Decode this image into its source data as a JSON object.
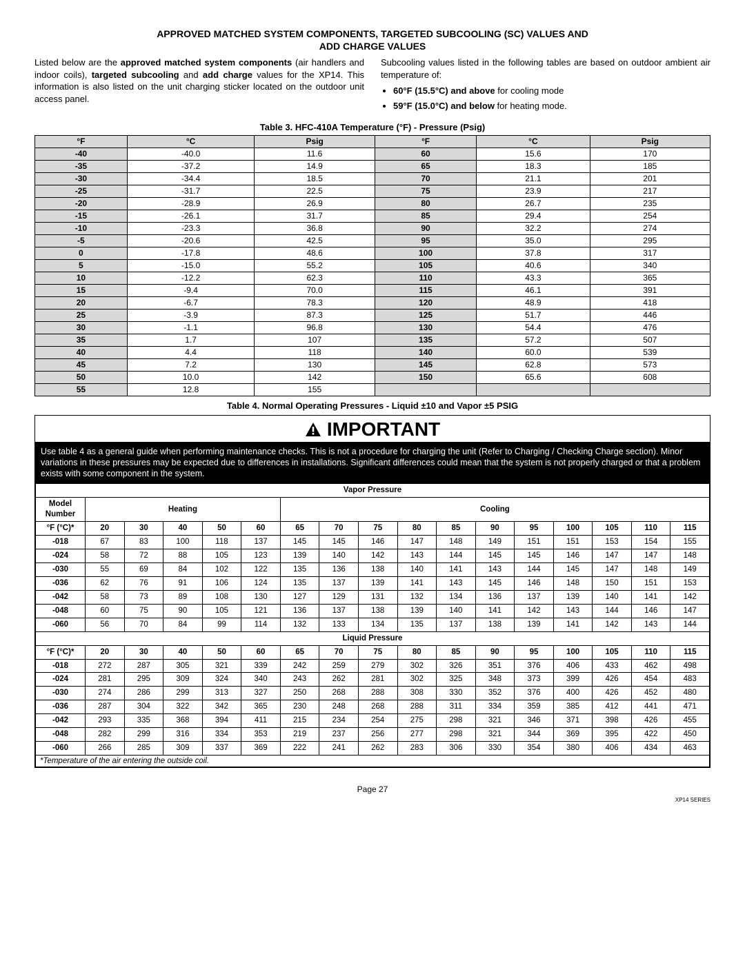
{
  "title_line1": "APPROVED MATCHED SYSTEM COMPONENTS, TARGETED SUBCOOLING (SC) VALUES AND",
  "title_line2": "ADD CHARGE VALUES",
  "intro_left_1": "Listed below are the ",
  "intro_left_b1": "approved matched system components",
  "intro_left_2": " (air handlers and indoor coils), ",
  "intro_left_b2": "targeted subcooling",
  "intro_left_3": " and ",
  "intro_left_b3": "add charge",
  "intro_left_4": " values for the XP14. This information is also listed on the unit charging sticker located on the outdoor unit access panel.",
  "intro_right_1": "Subcooling values listed in the following tables are based on outdoor ambient air temperature of:",
  "bullet1_b": "60°F (15.5°C) and above",
  "bullet1_t": " for cooling mode",
  "bullet2_b": "59°F (15.0°C) and below",
  "bullet2_t": " for heating mode.",
  "table3_caption": "Table 3. HFC-410A Temperature (°F) - Pressure (Psig)",
  "tp_headers": [
    "°F",
    "°C",
    "Psig",
    "°F",
    "°C",
    "Psig"
  ],
  "tp_rows": [
    [
      "-40",
      "-40.0",
      "11.6",
      "60",
      "15.6",
      "170"
    ],
    [
      "-35",
      "-37.2",
      "14.9",
      "65",
      "18.3",
      "185"
    ],
    [
      "-30",
      "-34.4",
      "18.5",
      "70",
      "21.1",
      "201"
    ],
    [
      "-25",
      "-31.7",
      "22.5",
      "75",
      "23.9",
      "217"
    ],
    [
      "-20",
      "-28.9",
      "26.9",
      "80",
      "26.7",
      "235"
    ],
    [
      "-15",
      "-26.1",
      "31.7",
      "85",
      "29.4",
      "254"
    ],
    [
      "-10",
      "-23.3",
      "36.8",
      "90",
      "32.2",
      "274"
    ],
    [
      "-5",
      "-20.6",
      "42.5",
      "95",
      "35.0",
      "295"
    ],
    [
      "0",
      "-17.8",
      "48.6",
      "100",
      "37.8",
      "317"
    ],
    [
      "5",
      "-15.0",
      "55.2",
      "105",
      "40.6",
      "340"
    ],
    [
      "10",
      "-12.2",
      "62.3",
      "110",
      "43.3",
      "365"
    ],
    [
      "15",
      "-9.4",
      "70.0",
      "115",
      "46.1",
      "391"
    ],
    [
      "20",
      "-6.7",
      "78.3",
      "120",
      "48.9",
      "418"
    ],
    [
      "25",
      "-3.9",
      "87.3",
      "125",
      "51.7",
      "446"
    ],
    [
      "30",
      "-1.1",
      "96.8",
      "130",
      "54.4",
      "476"
    ],
    [
      "35",
      "1.7",
      "107",
      "135",
      "57.2",
      "507"
    ],
    [
      "40",
      "4.4",
      "118",
      "140",
      "60.0",
      "539"
    ],
    [
      "45",
      "7.2",
      "130",
      "145",
      "62.8",
      "573"
    ],
    [
      "50",
      "10.0",
      "142",
      "150",
      "65.6",
      "608"
    ],
    [
      "55",
      "12.8",
      "155",
      "",
      "",
      ""
    ]
  ],
  "table4_caption": "Table 4. Normal Operating Pressures - Liquid ±10 and Vapor ±5 PSIG",
  "important_label": "IMPORTANT",
  "important_text": "Use table 4 as a general guide when performing maintenance checks. This is not a procedure for charging the unit (Refer to Charging / Checking Charge section). Minor variations in these pressures may be expected due to differences in installations. Significant differences could mean that the system is not properly charged or that a problem exists with some component in the system.",
  "vapor_label": "Vapor Pressure",
  "liquid_label": "Liquid Pressure",
  "model_label": "Model Number",
  "heating_label": "Heating",
  "cooling_label": "Cooling",
  "temp_row_label": "°F (°C)*",
  "temp_cols": [
    "20",
    "30",
    "40",
    "50",
    "60",
    "65",
    "70",
    "75",
    "80",
    "85",
    "90",
    "95",
    "100",
    "105",
    "110",
    "115"
  ],
  "vapor_rows": [
    [
      "-018",
      "67",
      "83",
      "100",
      "118",
      "137",
      "145",
      "145",
      "146",
      "147",
      "148",
      "149",
      "151",
      "151",
      "153",
      "154",
      "155"
    ],
    [
      "-024",
      "58",
      "72",
      "88",
      "105",
      "123",
      "139",
      "140",
      "142",
      "143",
      "144",
      "145",
      "145",
      "146",
      "147",
      "147",
      "148"
    ],
    [
      "-030",
      "55",
      "69",
      "84",
      "102",
      "122",
      "135",
      "136",
      "138",
      "140",
      "141",
      "143",
      "144",
      "145",
      "147",
      "148",
      "149"
    ],
    [
      "-036",
      "62",
      "76",
      "91",
      "106",
      "124",
      "135",
      "137",
      "139",
      "141",
      "143",
      "145",
      "146",
      "148",
      "150",
      "151",
      "153"
    ],
    [
      "-042",
      "58",
      "73",
      "89",
      "108",
      "130",
      "127",
      "129",
      "131",
      "132",
      "134",
      "136",
      "137",
      "139",
      "140",
      "141",
      "142"
    ],
    [
      "-048",
      "60",
      "75",
      "90",
      "105",
      "121",
      "136",
      "137",
      "138",
      "139",
      "140",
      "141",
      "142",
      "143",
      "144",
      "146",
      "147"
    ],
    [
      "-060",
      "56",
      "70",
      "84",
      "99",
      "114",
      "132",
      "133",
      "134",
      "135",
      "137",
      "138",
      "139",
      "141",
      "142",
      "143",
      "144"
    ]
  ],
  "liquid_rows": [
    [
      "-018",
      "272",
      "287",
      "305",
      "321",
      "339",
      "242",
      "259",
      "279",
      "302",
      "326",
      "351",
      "376",
      "406",
      "433",
      "462",
      "498"
    ],
    [
      "-024",
      "281",
      "295",
      "309",
      "324",
      "340",
      "243",
      "262",
      "281",
      "302",
      "325",
      "348",
      "373",
      "399",
      "426",
      "454",
      "483"
    ],
    [
      "-030",
      "274",
      "286",
      "299",
      "313",
      "327",
      "250",
      "268",
      "288",
      "308",
      "330",
      "352",
      "376",
      "400",
      "426",
      "452",
      "480"
    ],
    [
      "-036",
      "287",
      "304",
      "322",
      "342",
      "365",
      "230",
      "248",
      "268",
      "288",
      "311",
      "334",
      "359",
      "385",
      "412",
      "441",
      "471"
    ],
    [
      "-042",
      "293",
      "335",
      "368",
      "394",
      "411",
      "215",
      "234",
      "254",
      "275",
      "298",
      "321",
      "346",
      "371",
      "398",
      "426",
      "455"
    ],
    [
      "-048",
      "282",
      "299",
      "316",
      "334",
      "353",
      "219",
      "237",
      "256",
      "277",
      "298",
      "321",
      "344",
      "369",
      "395",
      "422",
      "450"
    ],
    [
      "-060",
      "266",
      "285",
      "309",
      "337",
      "369",
      "222",
      "241",
      "262",
      "283",
      "306",
      "330",
      "354",
      "380",
      "406",
      "434",
      "463"
    ]
  ],
  "footnote": "*Temperature of the air entering the outside coil.",
  "page_num": "Page 27",
  "series": "XP14 SERIES"
}
